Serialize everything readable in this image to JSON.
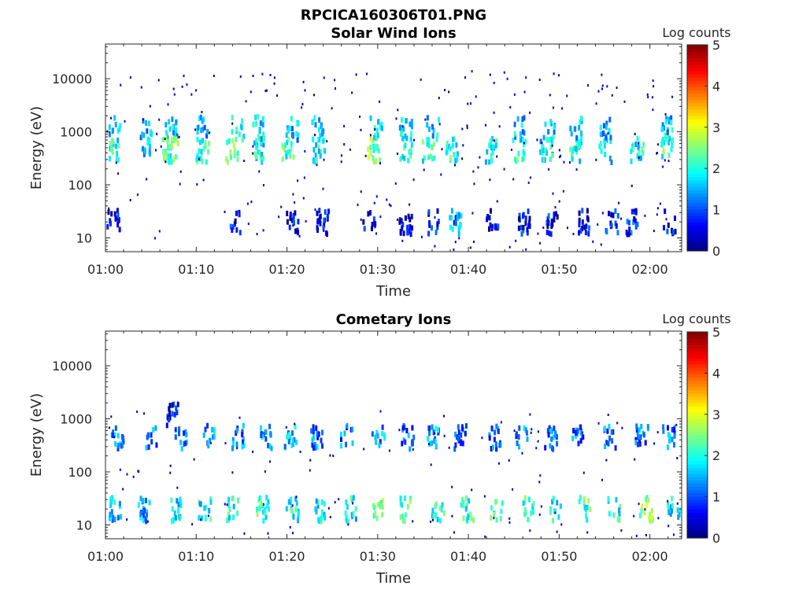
{
  "figure_title": "RPCICA160306T01.PNG",
  "chart_data": [
    {
      "type": "heatmap",
      "title": "Solar Wind Ions",
      "xlabel": "Time",
      "ylabel": "Energy (eV)",
      "yscale": "log",
      "ylim": [
        5.5,
        45000
      ],
      "xlim_minutes": [
        0,
        63.5
      ],
      "xticks": [
        "01:00",
        "01:10",
        "01:20",
        "01:30",
        "01:40",
        "01:50",
        "02:00"
      ],
      "yticks": [
        "10",
        "100",
        "1000",
        "10000"
      ],
      "colorbar": {
        "label": "Log counts",
        "ticks": [
          "0",
          "1",
          "2",
          "3",
          "4",
          "5"
        ],
        "range": [
          0,
          5
        ],
        "colormap": "jet"
      },
      "clusters": [
        {
          "t": 0.8,
          "e": 500,
          "lvl": 2.0
        },
        {
          "t": 1.0,
          "e": 1300,
          "lvl": 1.7
        },
        {
          "t": 0.8,
          "e": 22,
          "lvl": 0.5
        },
        {
          "t": 4.5,
          "e": 500,
          "lvl": 1.6
        },
        {
          "t": 4.3,
          "e": 1300,
          "lvl": 1.5
        },
        {
          "t": 6.5,
          "e": 500,
          "lvl": 2.1
        },
        {
          "t": 7.2,
          "e": 1300,
          "lvl": 1.7
        },
        {
          "t": 7.2,
          "e": 500,
          "lvl": 2.5
        },
        {
          "t": 10.6,
          "e": 500,
          "lvl": 2.2
        },
        {
          "t": 10.6,
          "e": 1300,
          "lvl": 1.5
        },
        {
          "t": 13.8,
          "e": 500,
          "lvl": 2.3
        },
        {
          "t": 14.5,
          "e": 1300,
          "lvl": 2.2
        },
        {
          "t": 14.2,
          "e": 22,
          "lvl": 0.6
        },
        {
          "t": 16.8,
          "e": 500,
          "lvl": 1.9
        },
        {
          "t": 16.7,
          "e": 1300,
          "lvl": 1.6
        },
        {
          "t": 20.0,
          "e": 500,
          "lvl": 2.1
        },
        {
          "t": 20.5,
          "e": 1300,
          "lvl": 1.6
        },
        {
          "t": 20.5,
          "e": 22,
          "lvl": 0.7
        },
        {
          "t": 23.5,
          "e": 500,
          "lvl": 2.0
        },
        {
          "t": 23.2,
          "e": 1300,
          "lvl": 1.6
        },
        {
          "t": 23.8,
          "e": 22,
          "lvl": 0.5
        },
        {
          "t": 29.5,
          "e": 500,
          "lvl": 2.4
        },
        {
          "t": 29.8,
          "e": 1300,
          "lvl": 1.8
        },
        {
          "t": 29.0,
          "e": 22,
          "lvl": 0.6
        },
        {
          "t": 33.0,
          "e": 500,
          "lvl": 2.0
        },
        {
          "t": 33.0,
          "e": 1300,
          "lvl": 1.6
        },
        {
          "t": 33.0,
          "e": 22,
          "lvl": 0.4
        },
        {
          "t": 35.5,
          "e": 500,
          "lvl": 2.1
        },
        {
          "t": 36.0,
          "e": 1300,
          "lvl": 1.7
        },
        {
          "t": 36.0,
          "e": 22,
          "lvl": 0.6
        },
        {
          "t": 38.0,
          "e": 500,
          "lvl": 2.0
        },
        {
          "t": 38.5,
          "e": 22,
          "lvl": 1.4
        },
        {
          "t": 42.5,
          "e": 500,
          "lvl": 1.8
        },
        {
          "t": 42.5,
          "e": 22,
          "lvl": 0.5
        },
        {
          "t": 45.5,
          "e": 500,
          "lvl": 2.3
        },
        {
          "t": 45.5,
          "e": 1300,
          "lvl": 1.6
        },
        {
          "t": 46.0,
          "e": 22,
          "lvl": 0.6
        },
        {
          "t": 48.5,
          "e": 500,
          "lvl": 1.8
        },
        {
          "t": 48.7,
          "e": 1300,
          "lvl": 1.7
        },
        {
          "t": 49.0,
          "e": 22,
          "lvl": 0.7
        },
        {
          "t": 51.7,
          "e": 500,
          "lvl": 1.9
        },
        {
          "t": 51.8,
          "e": 1300,
          "lvl": 1.6
        },
        {
          "t": 52.5,
          "e": 22,
          "lvl": 0.6
        },
        {
          "t": 55.0,
          "e": 500,
          "lvl": 1.7
        },
        {
          "t": 55.0,
          "e": 1300,
          "lvl": 1.5
        },
        {
          "t": 55.7,
          "e": 22,
          "lvl": 0.8
        },
        {
          "t": 58.5,
          "e": 500,
          "lvl": 1.9
        },
        {
          "t": 58.0,
          "e": 22,
          "lvl": 0.8
        },
        {
          "t": 61.8,
          "e": 500,
          "lvl": 2.1
        },
        {
          "t": 61.8,
          "e": 1300,
          "lvl": 1.6
        },
        {
          "t": 62.0,
          "e": 22,
          "lvl": 0.5
        }
      ]
    },
    {
      "type": "heatmap",
      "title": "Cometary Ions",
      "xlabel": "Time",
      "ylabel": "Energy (eV)",
      "yscale": "log",
      "ylim": [
        5.5,
        45000
      ],
      "xlim_minutes": [
        0,
        63.5
      ],
      "xticks": [
        "01:00",
        "01:10",
        "01:20",
        "01:30",
        "01:40",
        "01:50",
        "02:00"
      ],
      "yticks": [
        "10",
        "100",
        "1000",
        "10000"
      ],
      "colorbar": {
        "label": "Log counts",
        "ticks": [
          "0",
          "1",
          "2",
          "3",
          "4",
          "5"
        ],
        "range": [
          0,
          5
        ],
        "colormap": "jet"
      },
      "clusters": [
        {
          "t": 0.9,
          "e": 22,
          "lvl": 1.6
        },
        {
          "t": 1.2,
          "e": 500,
          "lvl": 1.3
        },
        {
          "t": 4.2,
          "e": 22,
          "lvl": 1.3
        },
        {
          "t": 4.8,
          "e": 500,
          "lvl": 1.2
        },
        {
          "t": 7.5,
          "e": 22,
          "lvl": 1.8
        },
        {
          "t": 8.2,
          "e": 500,
          "lvl": 1.3
        },
        {
          "t": 7.3,
          "e": 1300,
          "lvl": 0.6
        },
        {
          "t": 10.8,
          "e": 22,
          "lvl": 1.9
        },
        {
          "t": 11.2,
          "e": 500,
          "lvl": 1.4
        },
        {
          "t": 13.8,
          "e": 22,
          "lvl": 2.0
        },
        {
          "t": 14.5,
          "e": 500,
          "lvl": 1.3
        },
        {
          "t": 17.2,
          "e": 22,
          "lvl": 2.1
        },
        {
          "t": 17.5,
          "e": 500,
          "lvl": 1.3
        },
        {
          "t": 20.5,
          "e": 22,
          "lvl": 2.0
        },
        {
          "t": 20.3,
          "e": 500,
          "lvl": 1.5
        },
        {
          "t": 23.5,
          "e": 22,
          "lvl": 1.9
        },
        {
          "t": 23.2,
          "e": 500,
          "lvl": 1.2
        },
        {
          "t": 26.8,
          "e": 22,
          "lvl": 1.9
        },
        {
          "t": 26.5,
          "e": 500,
          "lvl": 1.2
        },
        {
          "t": 30.0,
          "e": 22,
          "lvl": 2.4
        },
        {
          "t": 30.0,
          "e": 500,
          "lvl": 1.4
        },
        {
          "t": 33.0,
          "e": 22,
          "lvl": 2.2
        },
        {
          "t": 33.2,
          "e": 500,
          "lvl": 1.2
        },
        {
          "t": 36.5,
          "e": 22,
          "lvl": 2.0
        },
        {
          "t": 36.0,
          "e": 500,
          "lvl": 1.4
        },
        {
          "t": 39.8,
          "e": 22,
          "lvl": 2.1
        },
        {
          "t": 39.0,
          "e": 500,
          "lvl": 1.1
        },
        {
          "t": 43.0,
          "e": 22,
          "lvl": 2.3
        },
        {
          "t": 42.8,
          "e": 500,
          "lvl": 1.2
        },
        {
          "t": 46.5,
          "e": 22,
          "lvl": 2.2
        },
        {
          "t": 45.7,
          "e": 500,
          "lvl": 1.3
        },
        {
          "t": 49.5,
          "e": 22,
          "lvl": 1.9
        },
        {
          "t": 49.0,
          "e": 500,
          "lvl": 1.1
        },
        {
          "t": 52.8,
          "e": 22,
          "lvl": 2.1
        },
        {
          "t": 52.0,
          "e": 500,
          "lvl": 1.2
        },
        {
          "t": 56.0,
          "e": 22,
          "lvl": 2.0
        },
        {
          "t": 55.5,
          "e": 500,
          "lvl": 1.2
        },
        {
          "t": 59.5,
          "e": 22,
          "lvl": 2.6
        },
        {
          "t": 59.0,
          "e": 500,
          "lvl": 1.1
        },
        {
          "t": 62.5,
          "e": 22,
          "lvl": 1.8
        },
        {
          "t": 62.0,
          "e": 500,
          "lvl": 1.2
        }
      ]
    }
  ]
}
